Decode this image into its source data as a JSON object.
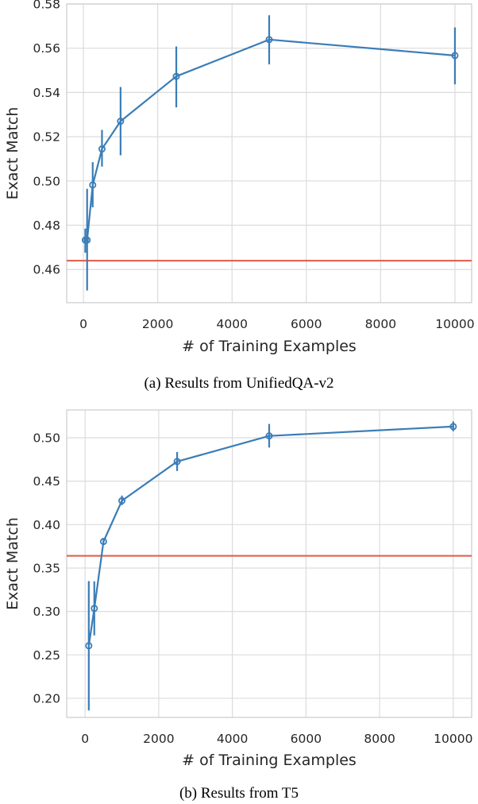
{
  "colors": {
    "series": "#3a7db8",
    "baseline": "#e05a47"
  },
  "chart_data": [
    {
      "type": "line",
      "caption": "(a) Results from UnifiedQA-v2",
      "xlabel": "# of Training Examples",
      "ylabel": "Exact Match",
      "xlim": [
        -450,
        10450
      ],
      "ylim": [
        0.445,
        0.58
      ],
      "xticks": [
        0,
        2000,
        4000,
        6000,
        8000,
        10000
      ],
      "yticks": [
        0.46,
        0.48,
        0.5,
        0.52,
        0.54,
        0.56,
        0.58
      ],
      "ytick_decimals": 2,
      "grid": true,
      "baseline": 0.464,
      "series": [
        {
          "x": [
            50,
            100,
            250,
            500,
            1000,
            2500,
            5000,
            10000
          ],
          "y": [
            0.4733,
            0.4733,
            0.4982,
            0.5145,
            0.527,
            0.5473,
            0.5639,
            0.5567
          ],
          "err_low": [
            0.4676,
            0.4505,
            0.4881,
            0.5065,
            0.5116,
            0.5333,
            0.5527,
            0.5437
          ],
          "err_high": [
            0.4785,
            0.4965,
            0.5085,
            0.5231,
            0.5425,
            0.5608,
            0.5749,
            0.5694
          ]
        }
      ]
    },
    {
      "type": "line",
      "caption": "(b) Results from T5",
      "xlabel": "# of Training Examples",
      "ylabel": "Exact Match",
      "xlim": [
        -500,
        10500
      ],
      "ylim": [
        0.178,
        0.532
      ],
      "xticks": [
        0,
        2000,
        4000,
        6000,
        8000,
        10000
      ],
      "yticks": [
        0.2,
        0.25,
        0.3,
        0.35,
        0.4,
        0.45,
        0.5
      ],
      "ytick_decimals": 2,
      "grid": true,
      "baseline": 0.364,
      "series": [
        {
          "x": [
            100,
            250,
            500,
            1000,
            2500,
            5000,
            10000
          ],
          "y": [
            0.2605,
            0.3035,
            0.3805,
            0.4275,
            0.4726,
            0.5021,
            0.5129
          ],
          "err_low": [
            0.186,
            0.2725,
            0.3765,
            0.4225,
            0.4617,
            0.4887,
            0.5075
          ],
          "err_high": [
            0.335,
            0.3346,
            0.3845,
            0.4334,
            0.4836,
            0.5159,
            0.5188
          ]
        }
      ]
    }
  ]
}
